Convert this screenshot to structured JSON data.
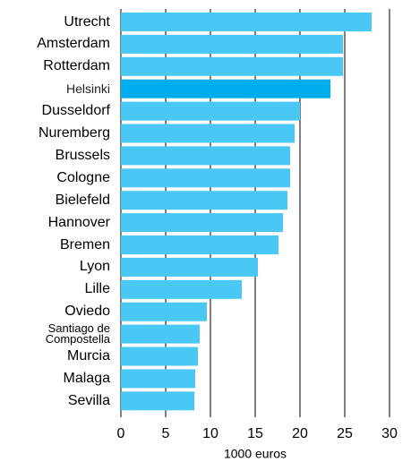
{
  "chart_data": {
    "type": "barh",
    "categories": [
      "Utrecht",
      "Amsterdam",
      "Rotterdam",
      "Helsinki",
      "Dusseldorf",
      "Nuremberg",
      "Brussels",
      "Cologne",
      "Bielefeld",
      "Hannover",
      "Bremen",
      "Lyon",
      "Lille",
      "Oviedo",
      "Santiago de Compostella",
      "Murcia",
      "Malaga",
      "Sevilla"
    ],
    "values": [
      28,
      24.8,
      24.8,
      23.4,
      20,
      19.4,
      18.9,
      18.9,
      18.6,
      18.1,
      17.6,
      15.3,
      13.5,
      9.6,
      8.8,
      8.6,
      8.3,
      8.2
    ],
    "colors": [
      "#49c8f5",
      "#49c8f5",
      "#49c8f5",
      "#00aeef",
      "#49c8f5",
      "#49c8f5",
      "#49c8f5",
      "#49c8f5",
      "#49c8f5",
      "#49c8f5",
      "#49c8f5",
      "#49c8f5",
      "#49c8f5",
      "#49c8f5",
      "#49c8f5",
      "#49c8f5",
      "#49c8f5",
      "#49c8f5"
    ],
    "xlabel": "1000 euros",
    "xlim": [
      0,
      30
    ],
    "xticks": [
      0,
      5,
      10,
      15,
      20,
      25,
      30
    ],
    "grid": true
  }
}
